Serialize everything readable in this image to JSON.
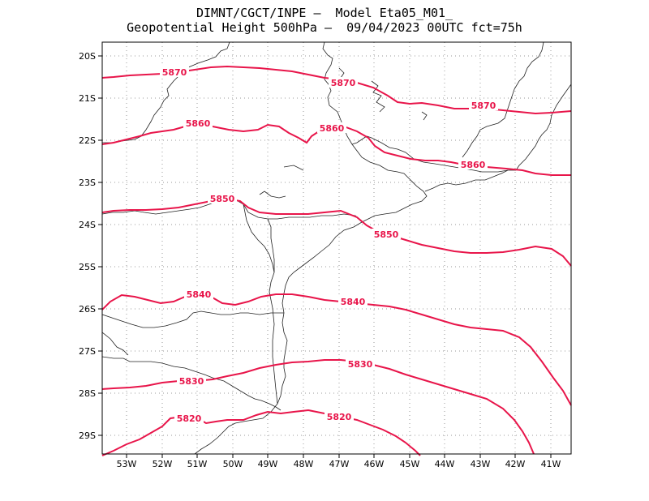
{
  "header": {
    "line1": "DIMNT/CGCT/INPE –  Model Eta05_M01_",
    "line2": "Geopotential Height 500hPa –  09/04/2023 00UTC fct=75h"
  },
  "map": {
    "lat_labels": [
      "20S",
      "21S",
      "22S",
      "23S",
      "24S",
      "25S",
      "26S",
      "27S",
      "28S",
      "29S"
    ],
    "lon_labels": [
      "53W",
      "52W",
      "51W",
      "50W",
      "49W",
      "48W",
      "47W",
      "46W",
      "45W",
      "44W",
      "43W",
      "42W",
      "41W"
    ],
    "contour_color": "#e8154a",
    "contours": [
      {
        "value": "5870",
        "labels": [
          "5870",
          "5870",
          "5870"
        ]
      },
      {
        "value": "5860",
        "labels": [
          "5860",
          "5860",
          "5860"
        ]
      },
      {
        "value": "5850",
        "labels": [
          "5850",
          "5850"
        ]
      },
      {
        "value": "5840",
        "labels": [
          "5840",
          "5840"
        ]
      },
      {
        "value": "5830",
        "labels": [
          "5830",
          "5830"
        ]
      },
      {
        "value": "5820",
        "labels": [
          "5820",
          "5820"
        ]
      }
    ]
  }
}
